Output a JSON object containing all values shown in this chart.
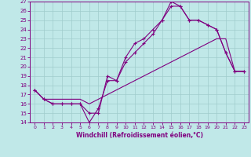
{
  "xlabel": "Windchill (Refroidissement éolien,°C)",
  "xlim": [
    -0.5,
    23.5
  ],
  "ylim": [
    14,
    27
  ],
  "yticks": [
    14,
    15,
    16,
    17,
    18,
    19,
    20,
    21,
    22,
    23,
    24,
    25,
    26,
    27
  ],
  "xticks": [
    0,
    1,
    2,
    3,
    4,
    5,
    6,
    7,
    8,
    9,
    10,
    11,
    12,
    13,
    14,
    15,
    16,
    17,
    18,
    19,
    20,
    21,
    22,
    23
  ],
  "bg_color": "#c0e8e8",
  "line_color": "#800080",
  "grid_color": "#a0cccc",
  "line1_x": [
    0,
    1,
    2,
    3,
    4,
    5,
    6,
    7,
    8,
    9,
    10,
    11,
    12,
    13,
    14,
    15,
    16,
    17,
    18,
    19,
    20,
    21,
    22,
    23
  ],
  "line1_y": [
    17.5,
    16.5,
    16.0,
    16.0,
    16.0,
    16.0,
    15.0,
    15.0,
    19.0,
    18.5,
    21.0,
    22.5,
    23.0,
    24.0,
    25.0,
    27.0,
    26.5,
    25.0,
    25.0,
    24.5,
    24.0,
    21.5,
    19.5,
    19.5
  ],
  "line2_x": [
    0,
    1,
    2,
    3,
    4,
    5,
    6,
    7,
    8,
    9,
    10,
    11,
    12,
    13,
    14,
    15,
    16,
    17,
    18,
    19,
    20,
    21,
    22,
    23
  ],
  "line2_y": [
    17.5,
    16.5,
    16.0,
    16.0,
    16.0,
    16.0,
    14.0,
    15.5,
    18.5,
    18.5,
    20.5,
    21.5,
    22.5,
    23.5,
    25.0,
    26.5,
    26.5,
    25.0,
    25.0,
    24.5,
    24.0,
    21.5,
    19.5,
    19.5
  ],
  "line3_x": [
    0,
    1,
    2,
    3,
    4,
    5,
    6,
    7,
    8,
    9,
    10,
    11,
    12,
    13,
    14,
    15,
    16,
    17,
    18,
    19,
    20,
    21,
    22,
    23
  ],
  "line3_y": [
    17.5,
    16.5,
    16.5,
    16.5,
    16.5,
    16.5,
    16.0,
    16.5,
    17.0,
    17.5,
    18.0,
    18.5,
    19.0,
    19.5,
    20.0,
    20.5,
    21.0,
    21.5,
    22.0,
    22.5,
    23.0,
    23.0,
    19.5,
    19.5
  ]
}
